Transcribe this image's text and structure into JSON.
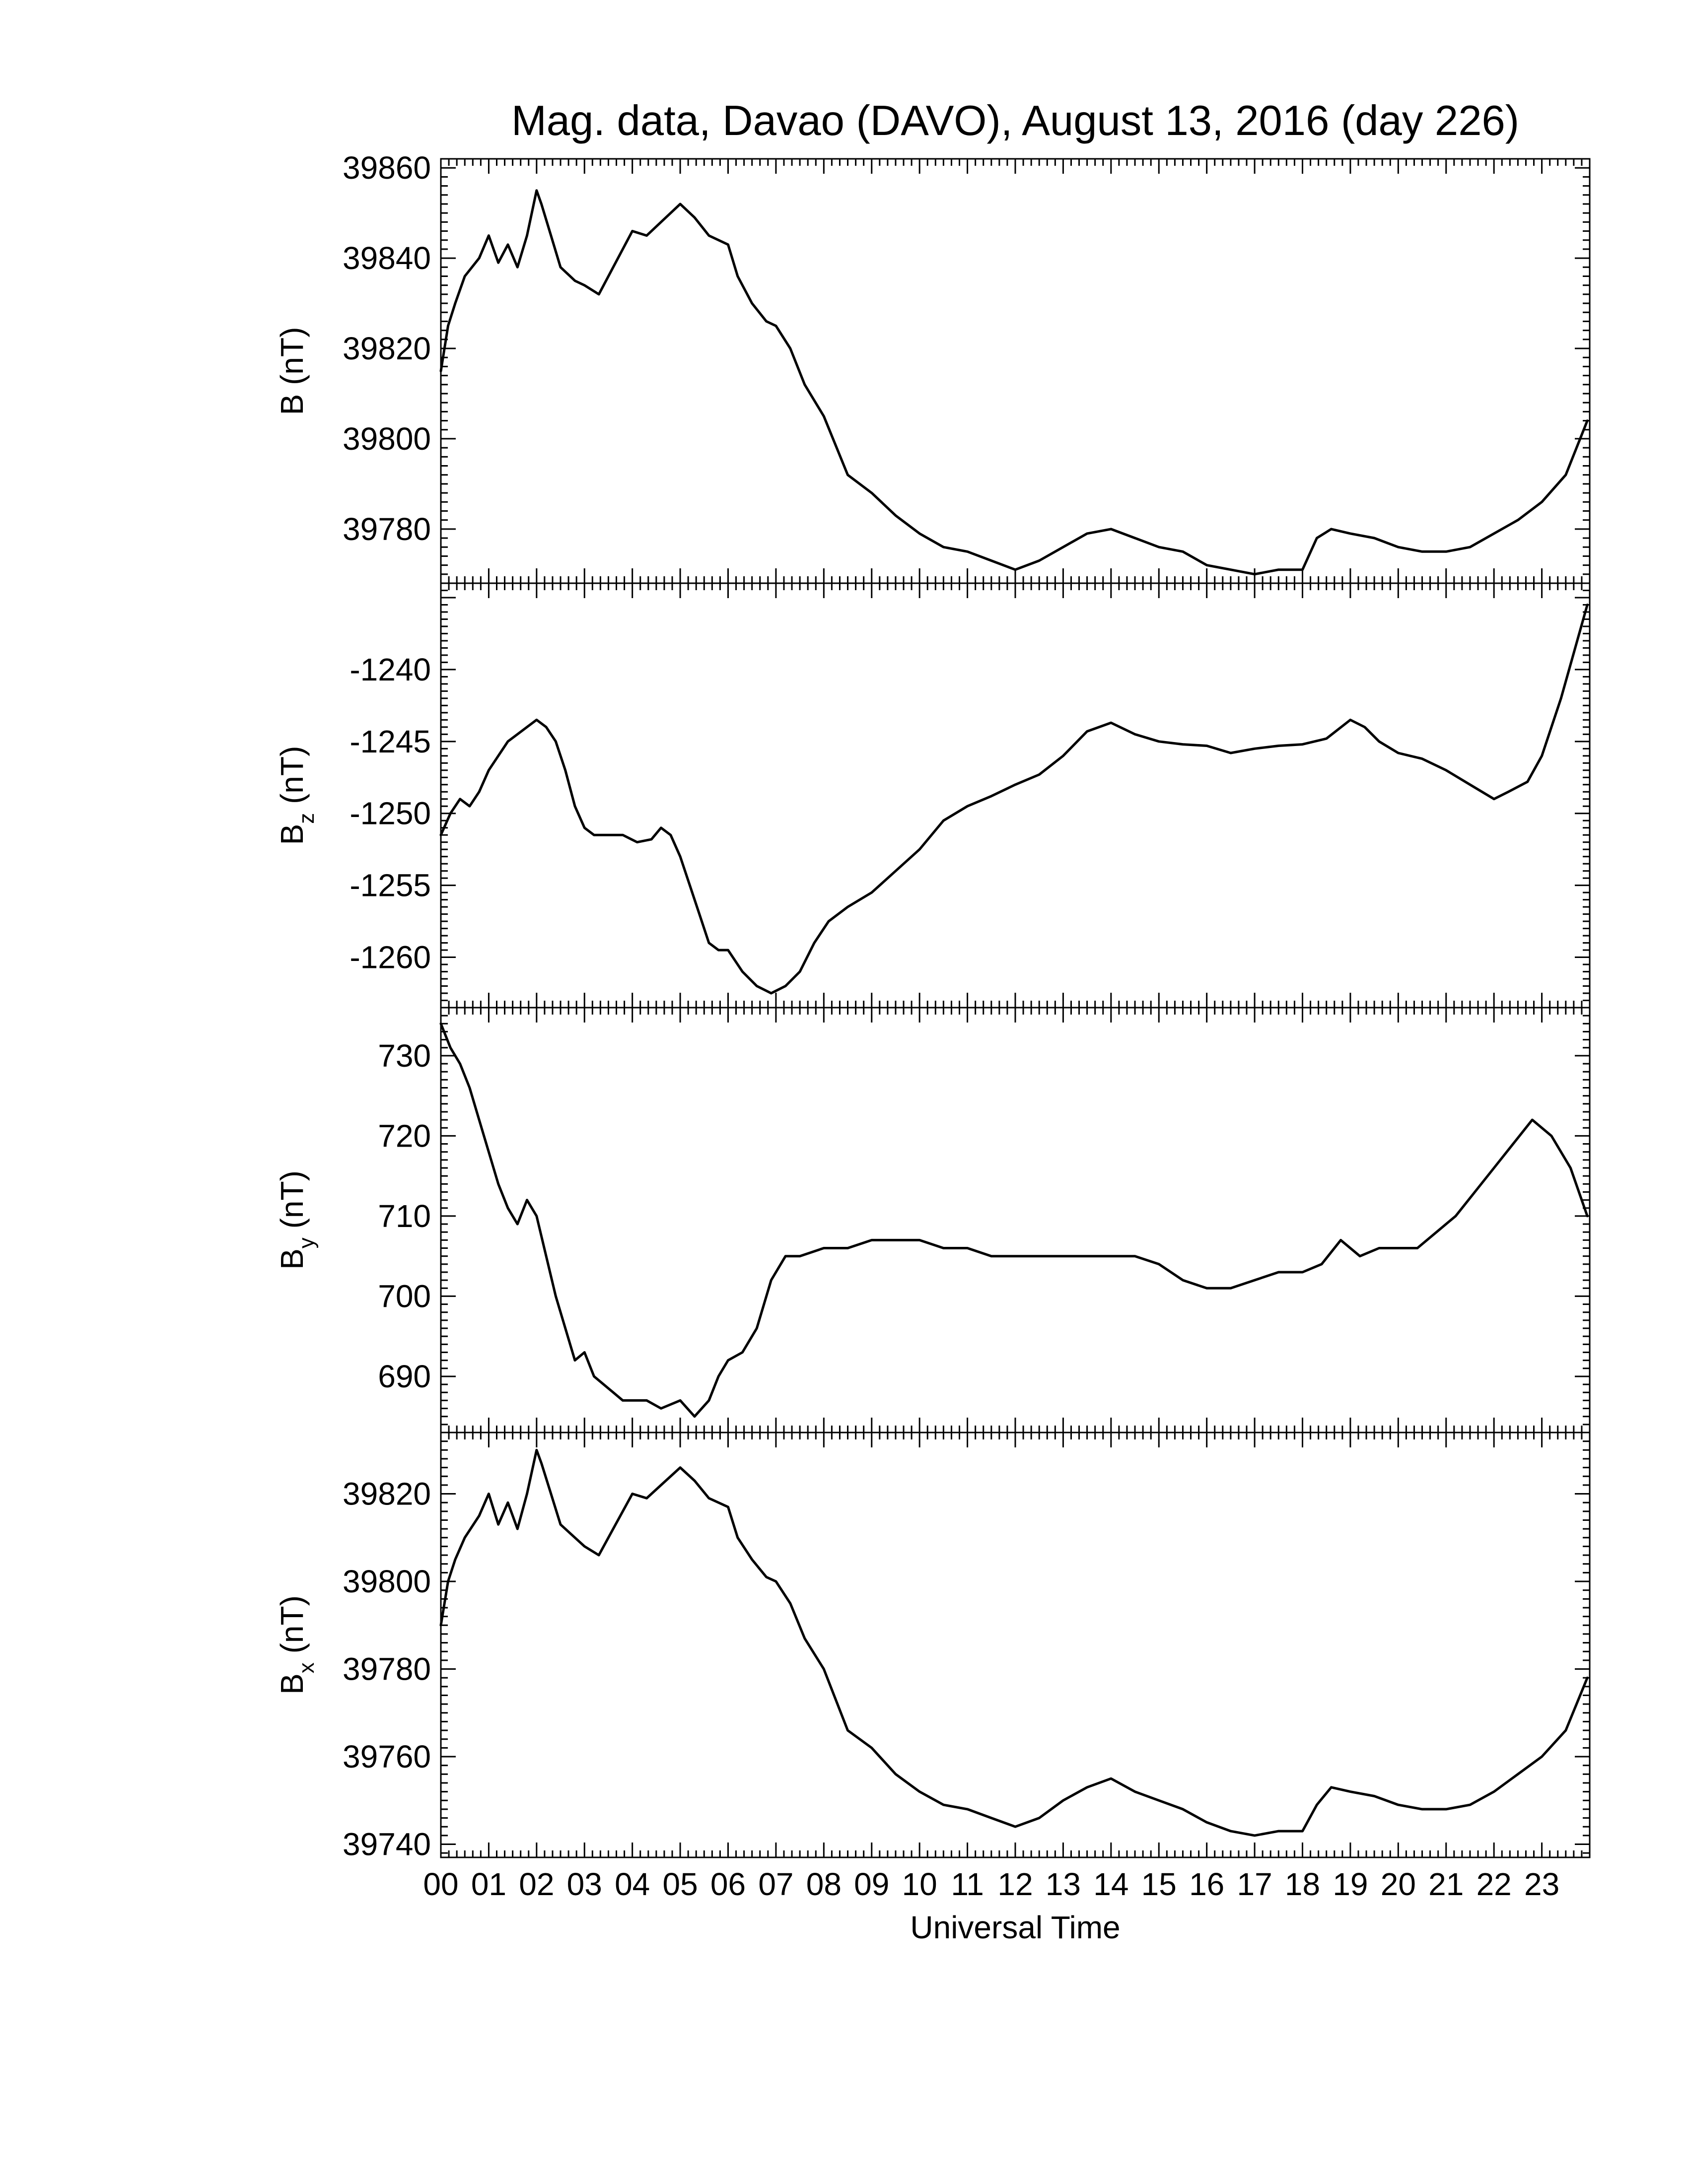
{
  "chart_data": {
    "type": "line",
    "title": "Mag. data, Davao (DAVO), August 13, 2016 (day 226)",
    "xlabel": "Universal Time",
    "x_ticks": [
      "00",
      "01",
      "02",
      "03",
      "04",
      "05",
      "06",
      "07",
      "08",
      "09",
      "10",
      "11",
      "12",
      "13",
      "14",
      "15",
      "16",
      "17",
      "18",
      "19",
      "20",
      "21",
      "22",
      "23"
    ],
    "xlim": [
      0,
      24
    ],
    "panels": [
      {
        "ylabel": "B (nT)",
        "ylabel_main": "B",
        "ylabel_sub": "",
        "ylabel_unit": " (nT)",
        "ylim": [
          39768,
          39862
        ],
        "yticks": [
          39780,
          39800,
          39820,
          39840,
          39860
        ],
        "x": [
          0,
          0.15,
          0.3,
          0.5,
          0.8,
          1.0,
          1.2,
          1.4,
          1.6,
          1.8,
          2.0,
          2.1,
          2.3,
          2.5,
          2.8,
          3.0,
          3.3,
          3.6,
          4.0,
          4.3,
          4.6,
          5.0,
          5.3,
          5.6,
          6.0,
          6.2,
          6.5,
          6.8,
          7.0,
          7.3,
          7.6,
          8.0,
          8.5,
          9.0,
          9.5,
          10.0,
          10.5,
          11.0,
          11.5,
          12.0,
          12.5,
          13.0,
          13.5,
          14.0,
          14.5,
          15.0,
          15.5,
          16.0,
          16.5,
          17.0,
          17.5,
          18.0,
          18.3,
          18.6,
          19.0,
          19.5,
          20.0,
          20.5,
          21.0,
          21.5,
          22.0,
          22.5,
          23.0,
          23.5,
          23.95
        ],
        "values": [
          39815,
          39825,
          39830,
          39836,
          39840,
          39845,
          39839,
          39843,
          39838,
          39845,
          39855,
          39852,
          39845,
          39838,
          39835,
          39834,
          39832,
          39838,
          39846,
          39845,
          39848,
          39852,
          39849,
          39845,
          39843,
          39836,
          39830,
          39826,
          39825,
          39820,
          39812,
          39805,
          39792,
          39788,
          39783,
          39779,
          39776,
          39775,
          39773,
          39771,
          39773,
          39776,
          39779,
          39780,
          39778,
          39776,
          39775,
          39772,
          39771,
          39770,
          39771,
          39771,
          39778,
          39780,
          39779,
          39778,
          39776,
          39775,
          39775,
          39776,
          39779,
          39782,
          39786,
          39792,
          39804
        ]
      },
      {
        "ylabel": "Bz (nT)",
        "ylabel_main": "B",
        "ylabel_sub": "z",
        "ylabel_unit": " (nT)",
        "ylim": [
          -1263.5,
          -1234
        ],
        "yticks": [
          -1260,
          -1255,
          -1250,
          -1245,
          -1240
        ],
        "x": [
          0,
          0.2,
          0.4,
          0.6,
          0.8,
          1.0,
          1.2,
          1.4,
          1.6,
          1.8,
          2.0,
          2.2,
          2.4,
          2.6,
          2.8,
          3.0,
          3.2,
          3.5,
          3.8,
          4.1,
          4.4,
          4.6,
          4.8,
          5.0,
          5.2,
          5.4,
          5.6,
          5.8,
          6.0,
          6.3,
          6.6,
          6.9,
          7.2,
          7.5,
          7.8,
          8.1,
          8.5,
          9.0,
          9.5,
          10.0,
          10.5,
          11.0,
          11.5,
          12.0,
          12.5,
          13.0,
          13.5,
          14.0,
          14.5,
          15.0,
          15.5,
          16.0,
          16.5,
          17.0,
          17.5,
          18.0,
          18.5,
          19.0,
          19.3,
          19.6,
          20.0,
          20.5,
          21.0,
          21.5,
          22.0,
          22.3,
          22.7,
          23.0,
          23.4,
          23.95
        ],
        "values": [
          -1251.5,
          -1250,
          -1249,
          -1249.5,
          -1248.5,
          -1247,
          -1246,
          -1245,
          -1244.5,
          -1244,
          -1243.5,
          -1244,
          -1245,
          -1247,
          -1249.5,
          -1251,
          -1251.5,
          -1251.5,
          -1251.5,
          -1252,
          -1251.8,
          -1251,
          -1251.5,
          -1253,
          -1255,
          -1257,
          -1259,
          -1259.5,
          -1259.5,
          -1261,
          -1262,
          -1262.5,
          -1262,
          -1261,
          -1259,
          -1257.5,
          -1256.5,
          -1255.5,
          -1254,
          -1252.5,
          -1250.5,
          -1249.5,
          -1248.8,
          -1248,
          -1247.3,
          -1246,
          -1244.3,
          -1243.7,
          -1244.5,
          -1245,
          -1245.2,
          -1245.3,
          -1245.8,
          -1245.5,
          -1245.3,
          -1245.2,
          -1244.8,
          -1243.5,
          -1244,
          -1245,
          -1245.8,
          -1246.2,
          -1247,
          -1248,
          -1249,
          -1248.5,
          -1247.8,
          -1246,
          -1242,
          -1235.5
        ]
      },
      {
        "ylabel": "By (nT)",
        "ylabel_main": "B",
        "ylabel_sub": "y",
        "ylabel_unit": " (nT)",
        "ylim": [
          683,
          736
        ],
        "yticks": [
          690,
          700,
          710,
          720,
          730
        ],
        "x": [
          0,
          0.2,
          0.4,
          0.6,
          0.8,
          1.0,
          1.2,
          1.4,
          1.6,
          1.8,
          2.0,
          2.2,
          2.4,
          2.6,
          2.8,
          3.0,
          3.2,
          3.4,
          3.6,
          3.8,
          4.0,
          4.3,
          4.6,
          5.0,
          5.3,
          5.6,
          5.8,
          6.0,
          6.3,
          6.6,
          6.9,
          7.2,
          7.5,
          8.0,
          8.5,
          9.0,
          9.5,
          10.0,
          10.5,
          11.0,
          11.5,
          12.0,
          12.5,
          13.0,
          13.5,
          14.0,
          14.5,
          15.0,
          15.5,
          16.0,
          16.5,
          17.0,
          17.5,
          18.0,
          18.4,
          18.8,
          19.2,
          19.6,
          20.0,
          20.4,
          20.8,
          21.2,
          21.6,
          22.0,
          22.4,
          22.8,
          23.2,
          23.6,
          23.95
        ],
        "values": [
          734,
          731,
          729,
          726,
          722,
          718,
          714,
          711,
          709,
          712,
          710,
          705,
          700,
          696,
          692,
          693,
          690,
          689,
          688,
          687,
          687,
          687,
          686,
          687,
          685,
          687,
          690,
          692,
          693,
          696,
          702,
          705,
          705,
          706,
          706,
          707,
          707,
          707,
          706,
          706,
          705,
          705,
          705,
          705,
          705,
          705,
          705,
          704,
          702,
          701,
          701,
          702,
          703,
          703,
          704,
          707,
          705,
          706,
          706,
          706,
          708,
          710,
          713,
          716,
          719,
          722,
          720,
          716,
          710
        ]
      },
      {
        "ylabel": "Bx (nT)",
        "ylabel_main": "B",
        "ylabel_sub": "x",
        "ylabel_unit": " (nT)",
        "ylim": [
          39737,
          39834
        ],
        "yticks": [
          39740,
          39760,
          39780,
          39800,
          39820
        ],
        "x": [
          0,
          0.15,
          0.3,
          0.5,
          0.8,
          1.0,
          1.2,
          1.4,
          1.6,
          1.8,
          2.0,
          2.1,
          2.3,
          2.5,
          2.8,
          3.0,
          3.3,
          3.6,
          4.0,
          4.3,
          4.6,
          5.0,
          5.3,
          5.6,
          6.0,
          6.2,
          6.5,
          6.8,
          7.0,
          7.3,
          7.6,
          8.0,
          8.5,
          9.0,
          9.5,
          10.0,
          10.5,
          11.0,
          11.5,
          12.0,
          12.5,
          13.0,
          13.5,
          14.0,
          14.5,
          15.0,
          15.5,
          16.0,
          16.5,
          17.0,
          17.5,
          18.0,
          18.3,
          18.6,
          19.0,
          19.5,
          20.0,
          20.5,
          21.0,
          21.5,
          22.0,
          22.5,
          23.0,
          23.5,
          23.95
        ],
        "values": [
          39790,
          39800,
          39805,
          39810,
          39815,
          39820,
          39813,
          39818,
          39812,
          39820,
          39830,
          39827,
          39820,
          39813,
          39810,
          39808,
          39806,
          39812,
          39820,
          39819,
          39822,
          39826,
          39823,
          39819,
          39817,
          39810,
          39805,
          39801,
          39800,
          39795,
          39787,
          39780,
          39766,
          39762,
          39756,
          39752,
          39749,
          39748,
          39746,
          39744,
          39746,
          39750,
          39753,
          39755,
          39752,
          39750,
          39748,
          39745,
          39743,
          39742,
          39743,
          39743,
          39749,
          39753,
          39752,
          39751,
          39749,
          39748,
          39748,
          39749,
          39752,
          39756,
          39760,
          39766,
          39778
        ]
      }
    ]
  }
}
